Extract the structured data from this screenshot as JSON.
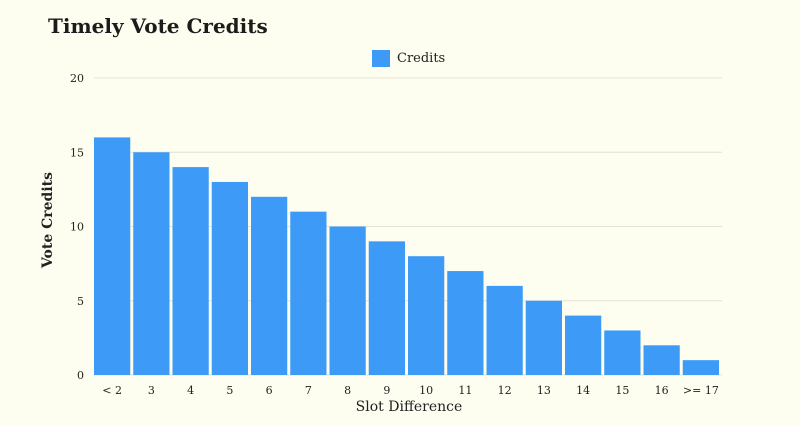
{
  "chart_data": {
    "type": "bar",
    "title": "Timely Vote Credits",
    "xlabel": "Slot Difference",
    "ylabel": "Vote Credits",
    "categories": [
      "< 2",
      "3",
      "4",
      "5",
      "6",
      "7",
      "8",
      "9",
      "10",
      "11",
      "12",
      "13",
      "14",
      "15",
      "16",
      ">= 17"
    ],
    "series": [
      {
        "name": "Credits",
        "values": [
          16,
          15,
          14,
          13,
          12,
          11,
          10,
          9,
          8,
          7,
          6,
          5,
          4,
          3,
          2,
          1
        ]
      }
    ],
    "ylim": [
      0,
      20
    ],
    "yticks": [
      0,
      5,
      10,
      15,
      20
    ],
    "grid": true,
    "legend_position": "top-center",
    "bar_color": "#3d9bf7",
    "grid_color": "#e2e2d6"
  }
}
